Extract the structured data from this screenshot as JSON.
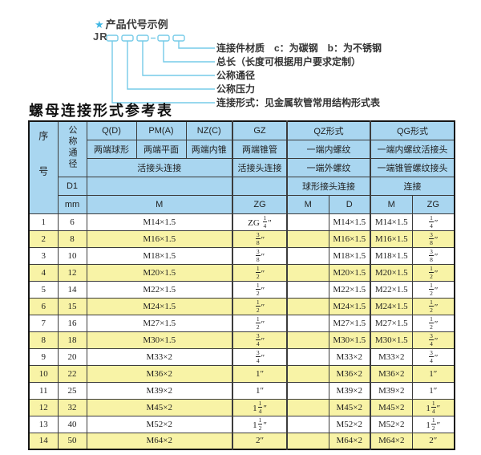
{
  "colors": {
    "diagram_line": "#76cbe8",
    "star": "#3fb6e3",
    "header_bg": "#a9d6f0",
    "row_alt_bg": "#f8f3a6",
    "row_bg": "#ffffff",
    "border": "#3c3c3c"
  },
  "diagram": {
    "star": "★",
    "title": "产品代号示例",
    "prefix": "JR",
    "labels": [
      "连接件材质　c：为碳钢　b：为不锈钢",
      "总长（长度可根据用户要求定制）",
      "公称通径",
      "公称压力",
      "连接形式：见金属软管常用结构形式表"
    ]
  },
  "table": {
    "title": "螺母连接形式参考表",
    "header": {
      "seq": "序号",
      "nominal_diameter": "公称通径",
      "d1": "D1",
      "mm": "mm",
      "col_q": "Q(D)",
      "col_pm": "PM(A)",
      "col_nz": "NZ(C)",
      "col_gz": "GZ",
      "col_qz": "QZ形式",
      "col_qg": "QG形式",
      "q_sub": "两端球形",
      "pm_sub": "两端平面",
      "nz_sub": "两端内锥",
      "gz_sub": "两端锥管",
      "qz_sub1": "一端内螺纹",
      "qg_sub1": "一端内螺纹活接头",
      "union_conn": "活接头连接",
      "gz_union": "活接头连接",
      "qz_sub2": "一端外螺纹",
      "qg_sub2": "一端锥管螺纹接头",
      "qz_sub3": "球形接头连接",
      "qg_sub3": "连接",
      "m1": "M",
      "zg1": "ZG",
      "qz_m": "M",
      "qz_d": "D",
      "qg_m": "M",
      "qg_zg": "ZG"
    },
    "rows": [
      [
        "1",
        "6",
        "M14×1.5",
        "ZG {1/4}″",
        "",
        "M14×1.5",
        "M14×1.5",
        "{1/4}″"
      ],
      [
        "2",
        "8",
        "M16×1.5",
        "{3/8}″",
        "",
        "M16×1.5",
        "M16×1.5",
        "{3/8}″"
      ],
      [
        "3",
        "10",
        "M18×1.5",
        "{3/8}″",
        "",
        "M18×1.5",
        "M18×1.5",
        "{3/8}″"
      ],
      [
        "4",
        "12",
        "M20×1.5",
        "{1/2}″",
        "",
        "M20×1.5",
        "M20×1.5",
        "{1/2}″"
      ],
      [
        "5",
        "14",
        "M22×1.5",
        "{1/2}″",
        "",
        "M22×1.5",
        "M22×1.5",
        "{1/2}″"
      ],
      [
        "6",
        "15",
        "M24×1.5",
        "{1/2}″",
        "",
        "M24×1.5",
        "M24×1.5",
        "{1/2}″"
      ],
      [
        "7",
        "16",
        "M27×1.5",
        "{1/2}″",
        "",
        "M27×1.5",
        "M27×1.5",
        "{1/2}″"
      ],
      [
        "8",
        "18",
        "M30×1.5",
        "{3/4}″",
        "",
        "M30×1.5",
        "M30×1.5",
        "{3/4}″"
      ],
      [
        "9",
        "20",
        "M33×2",
        "{3/4}″",
        "",
        "M33×2",
        "M33×2",
        "{3/4}″"
      ],
      [
        "10",
        "22",
        "M36×2",
        "1″",
        "",
        "M36×2",
        "M36×2",
        "1″"
      ],
      [
        "11",
        "25",
        "M39×2",
        "1″",
        "",
        "M39×2",
        "M39×2",
        "1″"
      ],
      [
        "12",
        "32",
        "M45×2",
        "1{1/4}″",
        "",
        "M45×2",
        "M45×2",
        "1{1/4}″"
      ],
      [
        "13",
        "40",
        "M52×2",
        "1{1/2}″",
        "",
        "M52×2",
        "M52×2",
        "1{1/2}″"
      ],
      [
        "14",
        "50",
        "M64×2",
        "2″",
        "",
        "M64×2",
        "M64×2",
        "2″"
      ]
    ]
  }
}
